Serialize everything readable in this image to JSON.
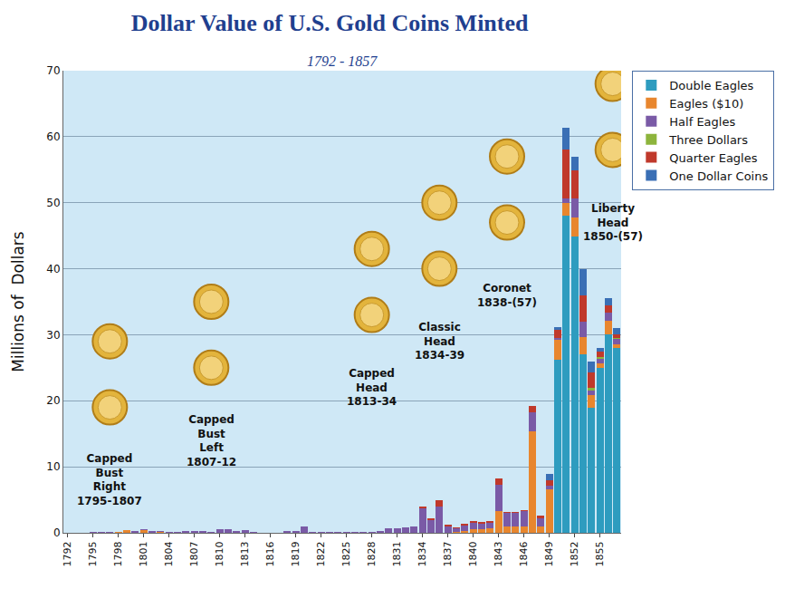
{
  "chart_data": {
    "type": "bar",
    "title": "Dollar Value of U.S. Gold Coins Minted",
    "subtitle": "1792 - 1857",
    "y_label": "Millions of  Dollars",
    "categories": [
      "1792",
      null,
      null,
      "1795",
      null,
      null,
      "1798",
      null,
      null,
      "1801",
      null,
      null,
      "1804",
      null,
      null,
      "1807",
      null,
      null,
      "1810",
      null,
      null,
      "1813",
      null,
      null,
      "1816",
      null,
      null,
      "1819",
      null,
      null,
      "1822",
      null,
      null,
      "1825",
      null,
      null,
      "1828",
      null,
      null,
      "1831",
      null,
      null,
      "1834",
      null,
      null,
      "1837",
      null,
      null,
      "1840",
      null,
      null,
      "1843",
      null,
      null,
      "1846",
      null,
      null,
      "1849",
      null,
      null,
      "1852",
      null,
      null,
      "1855",
      null,
      null
    ],
    "series": [
      {
        "name": "Double Eagles",
        "color": "#2e9cbf",
        "values": [
          0,
          0,
          0,
          0,
          0,
          0,
          0,
          0,
          0,
          0,
          0,
          0,
          0,
          0,
          0,
          0,
          0,
          0,
          0,
          0,
          0,
          0,
          0,
          0,
          0,
          0,
          0,
          0,
          0,
          0,
          0,
          0,
          0,
          0,
          0,
          0,
          0,
          0,
          0,
          0,
          0,
          0,
          0,
          0,
          0,
          0,
          0,
          0,
          0,
          0,
          0,
          0,
          0,
          0,
          0,
          0,
          0,
          0,
          26.2,
          48.0,
          44.9,
          27.0,
          19.0,
          25.0,
          30.0,
          28.0
        ]
      },
      {
        "name": "Eagles ($10)",
        "color": "#e8862e",
        "values": [
          0,
          0,
          0,
          0.05,
          0.06,
          0.04,
          0.07,
          0.37,
          0.06,
          0.44,
          0.02,
          0.15,
          0.04,
          0,
          0,
          0,
          0,
          0,
          0,
          0,
          0,
          0,
          0,
          0,
          0,
          0,
          0,
          0,
          0,
          0,
          0,
          0,
          0,
          0,
          0,
          0,
          0,
          0,
          0,
          0,
          0,
          0,
          0,
          0,
          0,
          0,
          0.07,
          0.25,
          0.5,
          0.6,
          0.75,
          3.3,
          1.0,
          1.0,
          1.0,
          15.4,
          0.9,
          6.6,
          3.0,
          2.0,
          2.8,
          2.6,
          1.8,
          0.6,
          2.1,
          0.5
        ]
      },
      {
        "name": "Half Eagles",
        "color": "#7a5aa6",
        "values": [
          0,
          0,
          0,
          0.04,
          0.03,
          0.03,
          0.12,
          0.04,
          0.19,
          0.13,
          0.27,
          0.17,
          0.15,
          0.17,
          0.32,
          0.26,
          0.28,
          0.17,
          0.5,
          0.5,
          0.29,
          0.48,
          0.08,
          0.003,
          0,
          0,
          0.24,
          0.26,
          0.97,
          0.17,
          0.09,
          0.07,
          0.09,
          0.15,
          0.09,
          0.12,
          0.14,
          0.29,
          0.63,
          0.7,
          0.79,
          0.97,
          3.66,
          1.86,
          3.99,
          1.0,
          0.6,
          0.8,
          1.0,
          0.8,
          0.8,
          4.0,
          2.0,
          2.0,
          2.3,
          2.8,
          1.3,
          0.6,
          0.3,
          0.7,
          2.9,
          2.4,
          0.8,
          0.8,
          1.2,
          0.9
        ]
      },
      {
        "name": "Three Dollars",
        "color": "#8db43c",
        "values": [
          0,
          0,
          0,
          0,
          0,
          0,
          0,
          0,
          0,
          0,
          0,
          0,
          0,
          0,
          0,
          0,
          0,
          0,
          0,
          0,
          0,
          0,
          0,
          0,
          0,
          0,
          0,
          0,
          0,
          0,
          0,
          0,
          0,
          0,
          0,
          0,
          0,
          0,
          0,
          0,
          0,
          0,
          0,
          0,
          0,
          0,
          0,
          0,
          0,
          0,
          0,
          0,
          0,
          0,
          0,
          0,
          0,
          0,
          0,
          0,
          0,
          0,
          0.4,
          0.2,
          0.1,
          0.1
        ]
      },
      {
        "name": "Quarter Eagles",
        "color": "#c0392b",
        "values": [
          0,
          0,
          0,
          0,
          0.003,
          0.004,
          0,
          0,
          0,
          0,
          0.01,
          0,
          0,
          0.004,
          0.004,
          0,
          0.007,
          0,
          0,
          0,
          0,
          0,
          0,
          0,
          0,
          0,
          0,
          0,
          0,
          0.02,
          0,
          0,
          0,
          0,
          0,
          0,
          0,
          0,
          0,
          0,
          0,
          0,
          0.3,
          0.33,
          1.0,
          0.2,
          0.2,
          0.3,
          0.3,
          0.2,
          0.3,
          0.9,
          0.2,
          0.2,
          0.1,
          1.0,
          0.4,
          0.7,
          1.2,
          7.3,
          4.3,
          3.9,
          2.3,
          0.8,
          1.1,
          0.5
        ]
      },
      {
        "name": "One Dollar Coins",
        "color": "#3a6fb5",
        "values": [
          0,
          0,
          0,
          0,
          0,
          0,
          0,
          0,
          0,
          0,
          0,
          0,
          0,
          0,
          0,
          0,
          0,
          0,
          0,
          0,
          0,
          0,
          0,
          0,
          0,
          0,
          0,
          0,
          0,
          0,
          0,
          0,
          0,
          0,
          0,
          0,
          0,
          0,
          0,
          0,
          0,
          0,
          0,
          0,
          0,
          0,
          0,
          0,
          0,
          0,
          0,
          0,
          0,
          0,
          0,
          0,
          0,
          1.0,
          0.5,
          3.3,
          2.0,
          4.1,
          1.6,
          0.6,
          1.0,
          1.0
        ]
      }
    ],
    "annotations": [
      "Capped Bust Right 1795-1807",
      "Capped Bust Left 1807-12",
      "Capped Head 1813-34",
      "Classic Head 1834-39",
      "Coronet 1838-(57)",
      "Liberty Head 1850-(57)"
    ],
    "ylim": [
      0,
      70
    ],
    "yticks": [
      0,
      10,
      20,
      30,
      40,
      50,
      60,
      70
    ],
    "grid": true,
    "stacked": true,
    "legend": "right"
  }
}
